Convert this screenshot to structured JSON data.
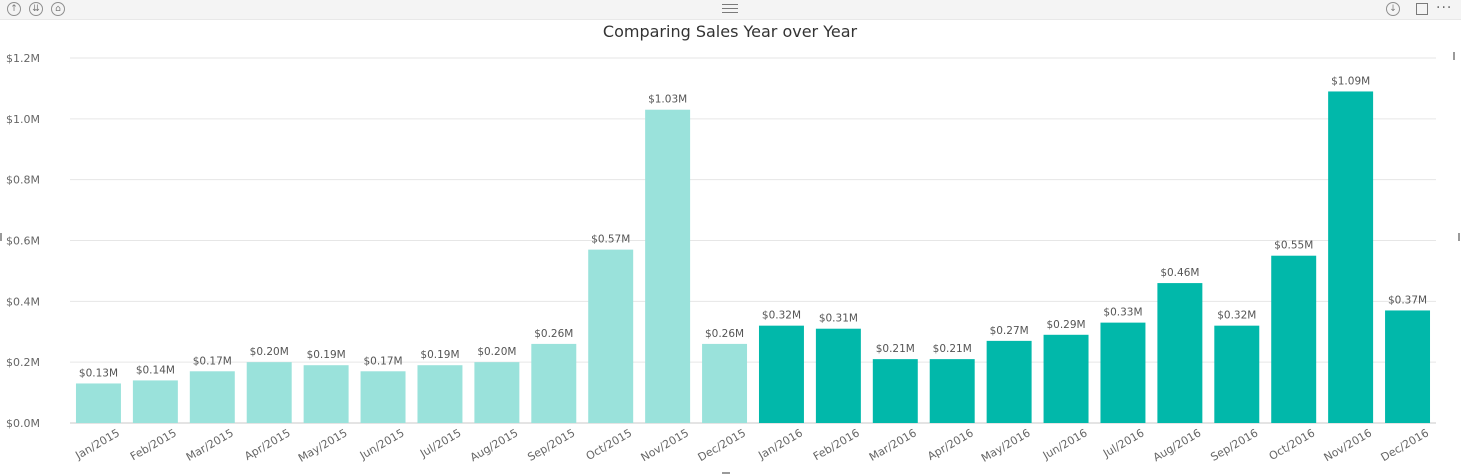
{
  "toolbar": {
    "icons": [
      "drill-up-icon",
      "expand-all-icon",
      "drill-mode-icon",
      "drill-down-icon",
      "focus-mode-icon",
      "more-options-icon"
    ]
  },
  "chart_data": {
    "type": "bar",
    "title": "Comparing Sales Year over Year",
    "xlabel": "",
    "ylabel": "",
    "ylim": [
      0,
      1.2
    ],
    "yticks": [
      "$0.0M",
      "$0.2M",
      "$0.4M",
      "$0.6M",
      "$0.8M",
      "$1.0M",
      "$1.2M"
    ],
    "grid": true,
    "categories": [
      "Jan/2015",
      "Feb/2015",
      "Mar/2015",
      "Apr/2015",
      "May/2015",
      "Jun/2015",
      "Jul/2015",
      "Aug/2015",
      "Sep/2015",
      "Oct/2015",
      "Nov/2015",
      "Dec/2015",
      "Jan/2016",
      "Feb/2016",
      "Mar/2016",
      "Apr/2016",
      "May/2016",
      "Jun/2016",
      "Jul/2016",
      "Aug/2016",
      "Sep/2016",
      "Oct/2016",
      "Nov/2016",
      "Dec/2016"
    ],
    "values": [
      0.13,
      0.14,
      0.17,
      0.2,
      0.19,
      0.17,
      0.19,
      0.2,
      0.26,
      0.57,
      1.03,
      0.26,
      0.32,
      0.31,
      0.21,
      0.21,
      0.27,
      0.29,
      0.33,
      0.46,
      0.32,
      0.55,
      1.09,
      0.37
    ],
    "labels": [
      "$0.13M",
      "$0.14M",
      "$0.17M",
      "$0.20M",
      "$0.19M",
      "$0.17M",
      "$0.19M",
      "$0.20M",
      "$0.26M",
      "$0.57M",
      "$1.03M",
      "$0.26M",
      "$0.32M",
      "$0.31M",
      "$0.21M",
      "$0.21M",
      "$0.27M",
      "$0.29M",
      "$0.33M",
      "$0.46M",
      "$0.32M",
      "$0.55M",
      "$1.09M",
      "$0.37M"
    ],
    "colors": {
      "year_2015": "#9ae2db",
      "year_2016": "#01b8aa",
      "grid": "#e6e6e6",
      "axis": "#c8c8c8"
    }
  }
}
